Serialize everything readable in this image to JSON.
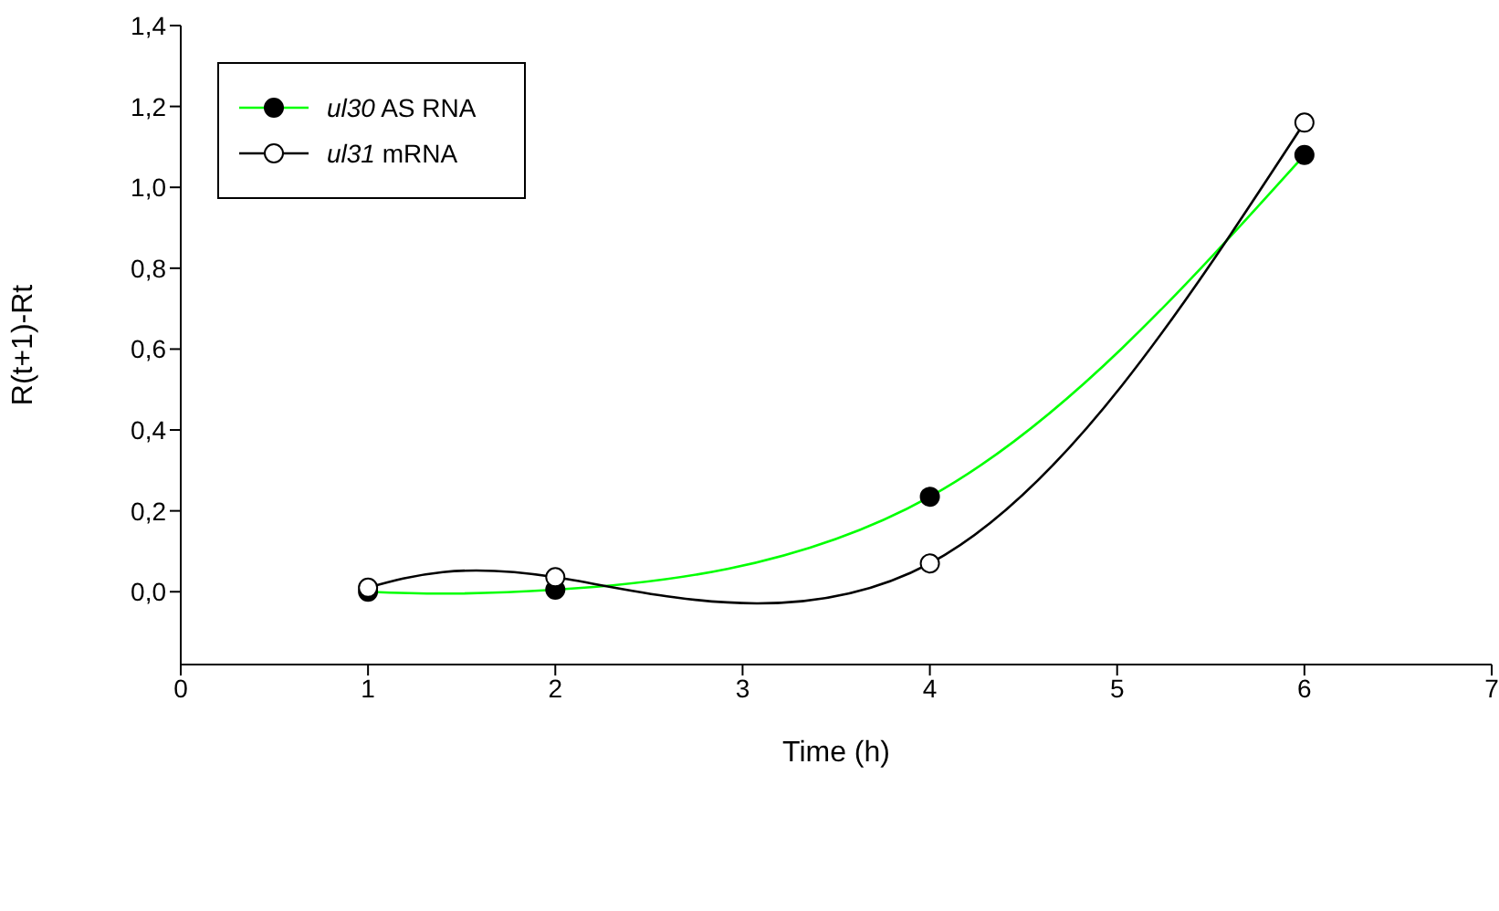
{
  "chart_data": {
    "type": "line",
    "xlabel": "Time (h)",
    "ylabel": "R(t+1)-Rt",
    "x": [
      1,
      2,
      4,
      6
    ],
    "series": [
      {
        "name": "ul30 AS RNA",
        "color": "#00ff00",
        "values": [
          0.0,
          0.005,
          0.235,
          1.08
        ]
      },
      {
        "name": "ul31 mRNA",
        "color": "#000000",
        "values": [
          0.01,
          0.036,
          0.07,
          1.16
        ]
      }
    ],
    "xlim": [
      0,
      7
    ],
    "xticks": [
      0,
      1,
      2,
      3,
      4,
      5,
      6,
      7
    ],
    "ylim": [
      -0.18,
      1.4
    ],
    "yticks": [
      {
        "value": 0,
        "label": "0,0"
      },
      {
        "value": 0.2,
        "label": "0,2"
      },
      {
        "value": 0.4,
        "label": "0,4"
      },
      {
        "value": 0.6,
        "label": "0,6"
      },
      {
        "value": 0.8,
        "label": "0,8"
      },
      {
        "value": 1,
        "label": "1,0"
      },
      {
        "value": 1.2,
        "label": "1,2"
      },
      {
        "value": 1.4,
        "label": "1,4"
      }
    ],
    "legend": "top left",
    "marker": "circle",
    "grid": false
  }
}
